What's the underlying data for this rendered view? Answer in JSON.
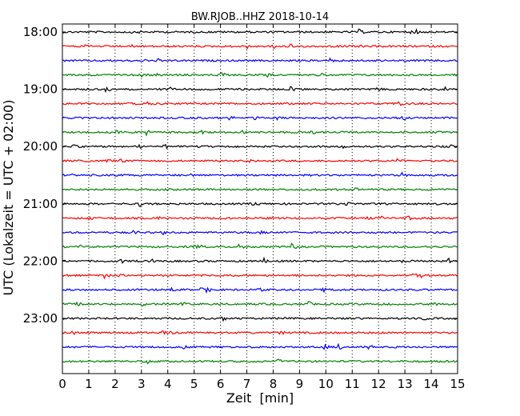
{
  "chart_data": {
    "type": "line",
    "title": "BW.RJOB..HHZ 2018-10-14",
    "xlabel": "Zeit  [min]",
    "ylabel": "UTC (Lokalzeit = UTC + 02:00)",
    "xlim": [
      0,
      15
    ],
    "x_ticks": [
      "0",
      "1",
      "2",
      "3",
      "4",
      "5",
      "6",
      "7",
      "8",
      "9",
      "10",
      "11",
      "12",
      "13",
      "14",
      "15"
    ],
    "y_tick_labels": [
      "18:00",
      "19:00",
      "20:00",
      "21:00",
      "22:00",
      "23:00"
    ],
    "vertical_grid": "dotted",
    "trace_colors": [
      "#000000",
      "#ff0000",
      "#0000ff",
      "#008000"
    ],
    "trace_start_times": [
      "18:00",
      "18:15",
      "18:30",
      "18:45",
      "19:00",
      "19:15",
      "19:30",
      "19:45",
      "20:00",
      "20:15",
      "20:30",
      "20:45",
      "21:00",
      "21:15",
      "21:30",
      "21:45",
      "22:00",
      "22:15",
      "22:30",
      "22:45",
      "23:00",
      "23:15",
      "23:30",
      "23:45"
    ],
    "trace_duration_min": 15
  }
}
